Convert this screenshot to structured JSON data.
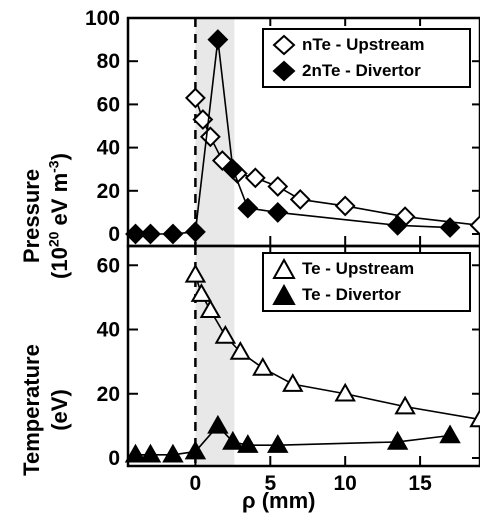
{
  "chart_data": [
    {
      "type": "line",
      "panel": "top",
      "ylabel_main": "Pressure",
      "ylabel_unit_pre": "(10",
      "ylabel_unit_sup1": "20",
      "ylabel_unit_mid": " eV m",
      "ylabel_unit_sup2": "-3",
      "ylabel_unit_post": ")",
      "ylim": [
        0,
        100
      ],
      "xlim": [
        -4.5,
        19
      ],
      "yticks": [
        "0",
        "20",
        "40",
        "60",
        "80",
        "100"
      ],
      "legend_placement": "top-right",
      "series": [
        {
          "name": "nTe - Upstream",
          "marker": "open-diamond",
          "x": [
            0,
            0.5,
            1.0,
            1.8,
            2.8,
            4.0,
            5.5,
            7.0,
            10.0,
            14.0,
            19.0
          ],
          "y": [
            63,
            53,
            45,
            34,
            28,
            26,
            22,
            16,
            13,
            8,
            4
          ]
        },
        {
          "name": "2nTe - Divertor",
          "marker": "filled-diamond",
          "x": [
            -4,
            -3,
            -1.5,
            0,
            1.5,
            2.5,
            3.5,
            5.5,
            13.5,
            17.0
          ],
          "y": [
            0,
            0,
            0,
            1,
            90,
            30,
            12,
            10,
            4,
            3
          ]
        }
      ]
    },
    {
      "type": "line",
      "panel": "bottom",
      "ylabel_main": "Temperature",
      "ylabel_unit": "(eV)",
      "xlabel": "ρ  (mm)",
      "ylim": [
        0,
        66
      ],
      "xlim": [
        -4.5,
        19
      ],
      "yticks": [
        "0",
        "20",
        "40",
        "60"
      ],
      "xticks": [
        "0",
        "5",
        "10",
        "15"
      ],
      "legend_placement": "top-right",
      "series": [
        {
          "name": "Te - Upstream",
          "marker": "open-triangle",
          "x": [
            0,
            0.4,
            1.0,
            2.0,
            3.0,
            4.5,
            6.5,
            10.0,
            14.0,
            19.0
          ],
          "y": [
            57,
            51,
            46,
            38,
            33,
            28,
            23,
            20,
            16,
            12
          ]
        },
        {
          "name": "Te - Divertor",
          "marker": "filled-triangle",
          "x": [
            -4,
            -3,
            -1.5,
            0,
            1.5,
            2.5,
            3.5,
            5.5,
            13.5,
            17.0
          ],
          "y": [
            1,
            1,
            1,
            2,
            10,
            5,
            4,
            4,
            5,
            7
          ]
        }
      ]
    }
  ]
}
